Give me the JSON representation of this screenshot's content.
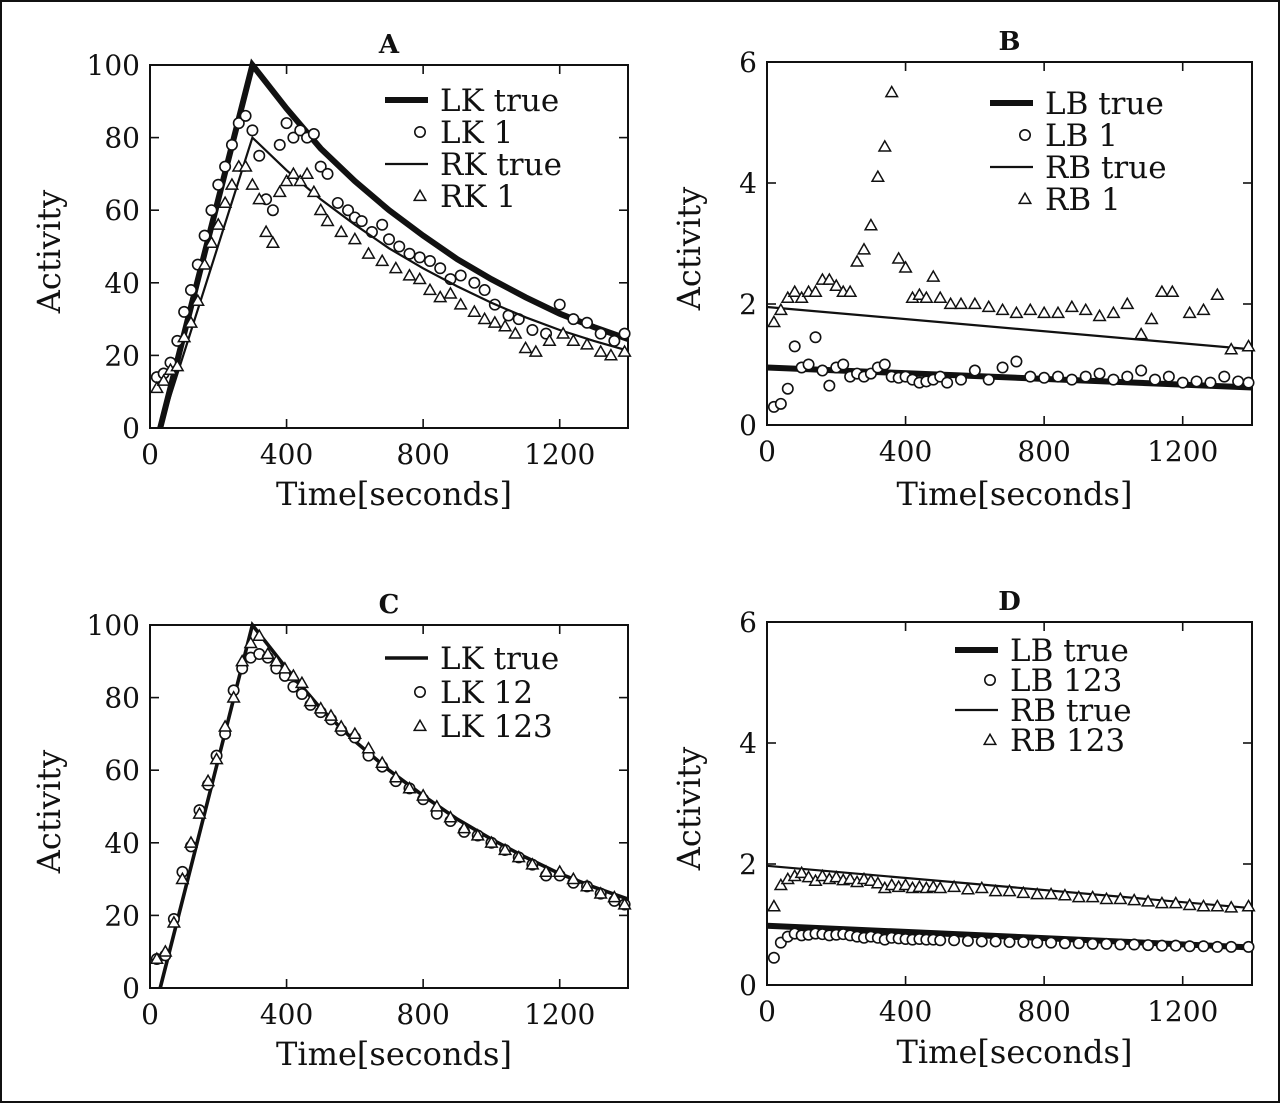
{
  "colors": {
    "ink": "#111111",
    "background": "#ffffff"
  },
  "chart_data": [
    {
      "panel": "A",
      "type": "scatter",
      "title": "A",
      "xlabel": "Time[seconds]",
      "ylabel": "Activity",
      "xlim": [
        0,
        1400
      ],
      "ylim": [
        0,
        100
      ],
      "xticks": [
        0,
        400,
        800,
        1200
      ],
      "yticks": [
        0,
        20,
        40,
        60,
        80,
        100
      ],
      "legend_position": "top-right",
      "series": [
        {
          "name": "LK true",
          "style": "line-thick",
          "x": [
            30,
            300,
            400,
            500,
            600,
            700,
            800,
            900,
            1000,
            1100,
            1200,
            1300,
            1400
          ],
          "y": [
            0,
            100,
            88,
            77,
            68,
            60,
            53,
            46.5,
            41,
            36,
            31.5,
            27.8,
            24.5
          ]
        },
        {
          "name": "LK 1",
          "style": "circle",
          "x": [
            20,
            40,
            60,
            80,
            100,
            120,
            140,
            160,
            180,
            200,
            220,
            240,
            260,
            280,
            300,
            320,
            340,
            360,
            380,
            400,
            420,
            440,
            460,
            480,
            500,
            520,
            550,
            580,
            600,
            620,
            650,
            680,
            700,
            730,
            760,
            790,
            820,
            850,
            880,
            910,
            950,
            980,
            1010,
            1050,
            1080,
            1120,
            1160,
            1200,
            1240,
            1280,
            1320,
            1360,
            1390
          ],
          "y": [
            14,
            15,
            18,
            24,
            32,
            38,
            45,
            53,
            60,
            67,
            72,
            78,
            84,
            86,
            82,
            75,
            63,
            60,
            78,
            84,
            80,
            82,
            80,
            81,
            72,
            70,
            62,
            60,
            58,
            57,
            54,
            56,
            52,
            50,
            48,
            47,
            46,
            44,
            41,
            42,
            40,
            38,
            34,
            31,
            30,
            27,
            26,
            34,
            30,
            29,
            26,
            24,
            26
          ]
        },
        {
          "name": "RK true",
          "style": "line-thin",
          "x": [
            30,
            300,
            400,
            500,
            600,
            700,
            800,
            900,
            1000,
            1100,
            1200,
            1300,
            1400
          ],
          "y": [
            0,
            80,
            71,
            63,
            56,
            49.5,
            44,
            39,
            34.5,
            30.5,
            27,
            24,
            21.3
          ]
        },
        {
          "name": "RK 1",
          "style": "triangle",
          "x": [
            20,
            40,
            60,
            80,
            100,
            120,
            140,
            160,
            180,
            200,
            220,
            240,
            260,
            280,
            300,
            320,
            340,
            360,
            380,
            400,
            420,
            440,
            460,
            480,
            500,
            520,
            560,
            600,
            640,
            680,
            720,
            760,
            790,
            820,
            850,
            880,
            910,
            950,
            980,
            1010,
            1040,
            1070,
            1100,
            1130,
            1170,
            1210,
            1240,
            1280,
            1320,
            1350,
            1390
          ],
          "y": [
            11,
            13,
            16,
            17,
            25,
            29,
            35,
            45,
            51,
            56,
            62,
            67,
            72,
            72,
            67,
            63,
            54,
            51,
            65,
            68,
            70,
            68,
            70,
            65,
            60,
            57,
            54,
            52,
            48,
            46,
            44,
            42,
            41,
            38,
            36,
            37,
            34,
            32,
            30,
            29,
            28,
            26,
            22,
            21,
            24,
            26,
            24,
            23,
            21,
            20,
            21
          ]
        }
      ]
    },
    {
      "panel": "B",
      "type": "scatter",
      "title": "B",
      "xlabel": "Time[seconds]",
      "ylabel": "Activity",
      "xlim": [
        0,
        1400
      ],
      "ylim": [
        0,
        6
      ],
      "xticks": [
        0,
        400,
        800,
        1200
      ],
      "yticks": [
        0,
        2,
        4,
        6
      ],
      "legend_position": "top-right",
      "series": [
        {
          "name": "LB true",
          "style": "line-thick",
          "x": [
            0,
            1400
          ],
          "y": [
            0.95,
            0.62
          ]
        },
        {
          "name": "LB 1",
          "style": "circle",
          "x": [
            20,
            40,
            60,
            80,
            100,
            120,
            140,
            160,
            180,
            200,
            220,
            240,
            260,
            280,
            300,
            320,
            340,
            360,
            380,
            400,
            420,
            440,
            460,
            480,
            500,
            520,
            560,
            600,
            640,
            680,
            720,
            760,
            800,
            840,
            880,
            920,
            960,
            1000,
            1040,
            1080,
            1120,
            1160,
            1200,
            1240,
            1280,
            1320,
            1360,
            1390
          ],
          "y": [
            0.3,
            0.35,
            0.6,
            1.3,
            0.95,
            1.0,
            1.45,
            0.9,
            0.65,
            0.95,
            1.0,
            0.8,
            0.85,
            0.8,
            0.85,
            0.95,
            1.0,
            0.8,
            0.78,
            0.8,
            0.75,
            0.7,
            0.72,
            0.75,
            0.8,
            0.7,
            0.75,
            0.9,
            0.75,
            0.95,
            1.05,
            0.8,
            0.78,
            0.8,
            0.75,
            0.8,
            0.85,
            0.75,
            0.8,
            0.9,
            0.75,
            0.8,
            0.7,
            0.72,
            0.7,
            0.8,
            0.72,
            0.7
          ]
        },
        {
          "name": "RB true",
          "style": "line-thin",
          "x": [
            0,
            1400
          ],
          "y": [
            1.95,
            1.25
          ]
        },
        {
          "name": "RB 1",
          "style": "triangle",
          "x": [
            20,
            40,
            60,
            80,
            100,
            120,
            140,
            160,
            180,
            200,
            220,
            240,
            260,
            280,
            300,
            320,
            340,
            360,
            380,
            400,
            420,
            440,
            460,
            480,
            500,
            530,
            560,
            600,
            640,
            680,
            720,
            760,
            800,
            840,
            880,
            920,
            960,
            1000,
            1040,
            1080,
            1110,
            1140,
            1170,
            1220,
            1260,
            1300,
            1340,
            1390
          ],
          "y": [
            1.7,
            1.9,
            2.1,
            2.2,
            2.1,
            2.2,
            2.2,
            2.4,
            2.4,
            2.3,
            2.2,
            2.2,
            2.7,
            2.9,
            3.3,
            4.1,
            4.6,
            5.5,
            2.75,
            2.6,
            2.1,
            2.15,
            2.1,
            2.45,
            2.1,
            2.0,
            2.0,
            2.0,
            1.95,
            1.9,
            1.85,
            1.9,
            1.85,
            1.85,
            1.95,
            1.9,
            1.8,
            1.85,
            2.0,
            1.5,
            1.75,
            2.2,
            2.2,
            1.85,
            1.9,
            2.15,
            1.25,
            1.3
          ]
        }
      ]
    },
    {
      "panel": "C",
      "type": "scatter",
      "title": "C",
      "xlabel": "Time[seconds]",
      "ylabel": "Activity",
      "xlim": [
        0,
        1400
      ],
      "ylim": [
        0,
        100
      ],
      "xticks": [
        0,
        400,
        800,
        1200
      ],
      "yticks": [
        0,
        20,
        40,
        60,
        80,
        100
      ],
      "legend_position": "top-right",
      "series": [
        {
          "name": "LK true",
          "style": "line-medium",
          "x": [
            30,
            300,
            400,
            500,
            600,
            700,
            800,
            900,
            1000,
            1100,
            1200,
            1300,
            1400
          ],
          "y": [
            0,
            100,
            88,
            77,
            68,
            60,
            53,
            46.5,
            41,
            36,
            31.5,
            27.8,
            24.5
          ]
        },
        {
          "name": "LK 12",
          "style": "circle",
          "x": [
            20,
            45,
            70,
            95,
            120,
            145,
            170,
            195,
            220,
            245,
            270,
            295,
            320,
            345,
            370,
            395,
            420,
            445,
            470,
            500,
            530,
            560,
            600,
            640,
            680,
            720,
            760,
            800,
            840,
            880,
            920,
            960,
            1000,
            1040,
            1080,
            1120,
            1160,
            1200,
            1240,
            1280,
            1320,
            1360,
            1390
          ],
          "y": [
            8,
            9,
            19,
            32,
            39,
            49,
            56,
            64,
            70,
            82,
            88,
            91,
            92,
            91,
            88,
            86,
            83,
            81,
            78,
            76,
            74,
            71,
            69,
            64,
            61,
            57,
            55,
            52,
            48,
            46,
            43,
            42,
            40,
            38,
            36,
            34,
            31,
            31,
            29,
            28,
            26,
            24,
            23
          ]
        },
        {
          "name": "LK 123",
          "style": "triangle",
          "x": [
            20,
            45,
            70,
            95,
            120,
            145,
            170,
            195,
            220,
            245,
            270,
            295,
            320,
            345,
            370,
            395,
            420,
            445,
            470,
            500,
            530,
            560,
            600,
            640,
            680,
            720,
            760,
            800,
            840,
            880,
            920,
            960,
            1000,
            1040,
            1080,
            1120,
            1160,
            1200,
            1240,
            1280,
            1320,
            1360,
            1390
          ],
          "y": [
            8,
            10,
            18,
            30,
            40,
            48,
            57,
            63,
            72,
            80,
            90,
            95,
            97,
            92,
            90,
            88,
            86,
            84,
            79,
            77,
            75,
            72,
            70,
            66,
            62,
            58,
            55,
            53,
            50,
            47,
            44,
            42,
            40,
            38,
            36,
            34,
            32,
            32,
            30,
            28,
            26,
            25,
            23
          ]
        }
      ]
    },
    {
      "panel": "D",
      "type": "scatter",
      "title": "D",
      "xlabel": "Time[seconds]",
      "ylabel": "Activity",
      "xlim": [
        0,
        1400
      ],
      "ylim": [
        0,
        6
      ],
      "xticks": [
        0,
        400,
        800,
        1200
      ],
      "yticks": [
        0,
        2,
        4,
        6
      ],
      "legend_position": "top-right",
      "series": [
        {
          "name": "LB true",
          "style": "line-thick",
          "x": [
            0,
            1400
          ],
          "y": [
            0.98,
            0.62
          ]
        },
        {
          "name": "LB 123",
          "style": "circle",
          "x": [
            20,
            40,
            60,
            80,
            100,
            120,
            140,
            160,
            180,
            200,
            220,
            240,
            260,
            280,
            300,
            320,
            340,
            360,
            380,
            400,
            420,
            440,
            460,
            480,
            500,
            540,
            580,
            620,
            660,
            700,
            740,
            780,
            820,
            860,
            900,
            940,
            980,
            1020,
            1060,
            1100,
            1140,
            1180,
            1220,
            1260,
            1300,
            1340,
            1390
          ],
          "y": [
            0.45,
            0.7,
            0.8,
            0.85,
            0.82,
            0.83,
            0.85,
            0.84,
            0.82,
            0.83,
            0.84,
            0.82,
            0.8,
            0.78,
            0.8,
            0.78,
            0.75,
            0.78,
            0.77,
            0.76,
            0.75,
            0.76,
            0.75,
            0.75,
            0.74,
            0.74,
            0.73,
            0.72,
            0.72,
            0.71,
            0.71,
            0.7,
            0.7,
            0.69,
            0.69,
            0.68,
            0.68,
            0.67,
            0.67,
            0.66,
            0.65,
            0.65,
            0.64,
            0.64,
            0.63,
            0.63,
            0.63
          ]
        },
        {
          "name": "RB true",
          "style": "line-thin",
          "x": [
            0,
            1400
          ],
          "y": [
            1.97,
            1.27
          ]
        },
        {
          "name": "RB 123",
          "style": "triangle",
          "x": [
            20,
            40,
            60,
            80,
            100,
            120,
            140,
            160,
            180,
            200,
            220,
            240,
            260,
            280,
            300,
            320,
            340,
            360,
            380,
            400,
            420,
            440,
            460,
            480,
            500,
            540,
            580,
            620,
            660,
            700,
            740,
            780,
            820,
            860,
            900,
            940,
            980,
            1020,
            1060,
            1100,
            1140,
            1180,
            1220,
            1260,
            1300,
            1340,
            1390
          ],
          "y": [
            1.3,
            1.65,
            1.75,
            1.8,
            1.85,
            1.78,
            1.72,
            1.8,
            1.75,
            1.78,
            1.73,
            1.75,
            1.7,
            1.75,
            1.72,
            1.68,
            1.6,
            1.65,
            1.62,
            1.65,
            1.6,
            1.62,
            1.6,
            1.62,
            1.6,
            1.62,
            1.58,
            1.6,
            1.55,
            1.55,
            1.52,
            1.5,
            1.5,
            1.48,
            1.45,
            1.45,
            1.42,
            1.42,
            1.4,
            1.38,
            1.35,
            1.35,
            1.32,
            1.3,
            1.3,
            1.28,
            1.3
          ]
        }
      ]
    }
  ]
}
